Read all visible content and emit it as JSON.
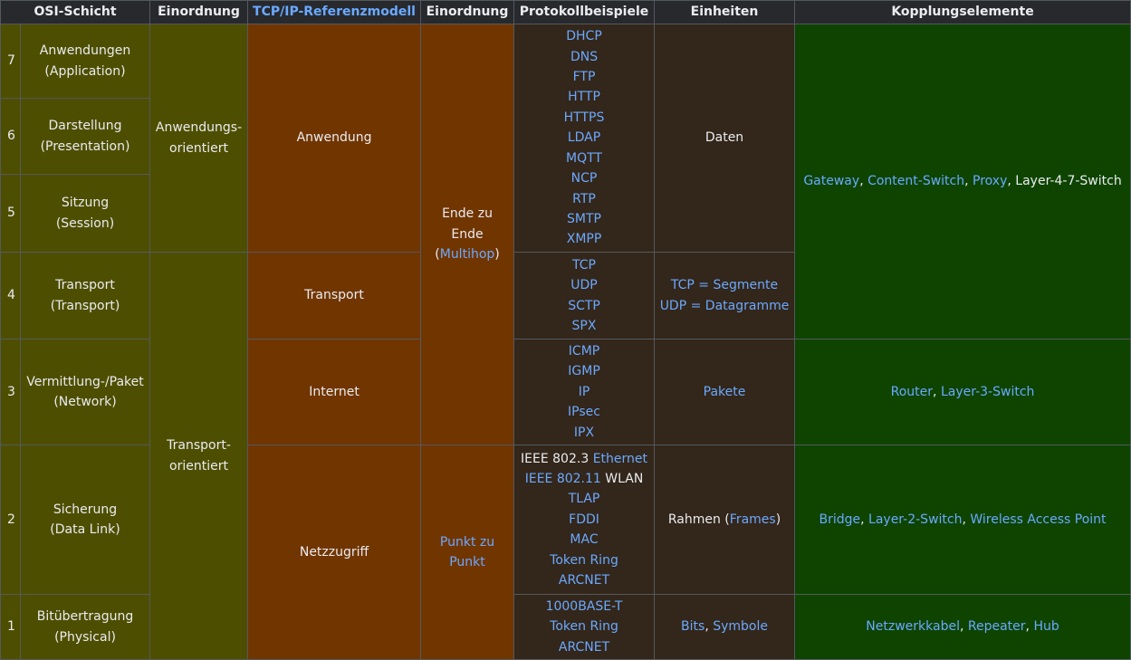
{
  "headers": {
    "osi": "OSI-Schicht",
    "einordnung1": "Einordnung",
    "tcpip": "TCP/IP-Referenzmodell",
    "einordnung2": "Einordnung",
    "protokolle": "Protokollbeispiele",
    "einheiten": "Einheiten",
    "kopplung": "Kopplungselemente"
  },
  "layers": [
    {
      "num": "7",
      "name": "Anwendungen",
      "en": "(Application)"
    },
    {
      "num": "6",
      "name": "Darstellung",
      "en": "(Presentation)"
    },
    {
      "num": "5",
      "name": "Sitzung",
      "en": "(Session)"
    },
    {
      "num": "4",
      "name": "Transport",
      "en": "(Transport)"
    },
    {
      "num": "3",
      "name": "Vermittlung-/Paket",
      "en": "(Network)"
    },
    {
      "num": "2",
      "name": "Sicherung",
      "en": "(Data Link)"
    },
    {
      "num": "1",
      "name": "Bitübertragung",
      "en": "(Physical)"
    }
  ],
  "einordnung1": {
    "anwendung": [
      "Anwendungs-",
      "orientiert"
    ],
    "transport": [
      "Transport-",
      "orientiert"
    ]
  },
  "tcpip": {
    "anwendung": "Anwendung",
    "transport": "Transport",
    "internet": "Internet",
    "netzzugriff": "Netzzugriff"
  },
  "einordnung2": {
    "ende_line1": "Ende zu",
    "ende_line2": "Ende",
    "ende_open": "(",
    "ende_link": "Multihop",
    "ende_close": ")",
    "punkt_line1": "Punkt zu",
    "punkt_line2": "Punkt"
  },
  "protocols": {
    "anwendung": [
      "DHCP",
      "DNS",
      "FTP",
      "HTTP",
      "HTTPS",
      "LDAP",
      "MQTT",
      "NCP",
      "RTP",
      "SMTP",
      "XMPP"
    ],
    "transport": [
      "TCP",
      "UDP",
      "SCTP",
      "SPX"
    ],
    "internet": [
      "ICMP",
      "IGMP",
      "IP",
      "IPsec",
      "IPX"
    ],
    "sicherung": {
      "ieee8023_a": "IEEE 802.3",
      "ieee8023_b": "Ethernet",
      "ieee80211_a": "IEEE 802.11",
      "ieee80211_b": "WLAN",
      "rest": [
        "TLAP",
        "FDDI",
        "MAC",
        "Token Ring",
        "ARCNET"
      ]
    },
    "physical": [
      "1000BASE-T",
      "Token Ring",
      "ARCNET"
    ]
  },
  "units": {
    "daten": "Daten",
    "tcp_segmente": "TCP = Segmente",
    "udp_datagramme": "UDP = Datagramme",
    "pakete": "Pakete",
    "rahmen_a": "Rahmen (",
    "rahmen_b": "Frames",
    "rahmen_c": ")",
    "bits": "Bits",
    "comma": ", ",
    "symbole": "Symbole"
  },
  "kopplung": {
    "anwendung": {
      "gateway": "Gateway",
      "content_switch": "Content-Switch",
      "proxy": "Proxy",
      "layer47": "Layer-4-7-Switch",
      "sep": ", "
    },
    "netzwerk": {
      "router": "Router",
      "layer3": "Layer-3-Switch",
      "sep": ", "
    },
    "sicherung": {
      "bridge": "Bridge",
      "layer2": "Layer-2-Switch",
      "wap": "Wireless Access Point",
      "sep": ", "
    },
    "physical": {
      "kabel": "Netzwerkkabel",
      "repeater": "Repeater",
      "hub": "Hub",
      "sep": ", "
    }
  },
  "colors": {
    "osi": "#4e4e00",
    "tcp": "#713500",
    "proto": "#33261a",
    "kopplung": "#0e4400",
    "header": "#27292d",
    "link": "#6ba9ff"
  }
}
